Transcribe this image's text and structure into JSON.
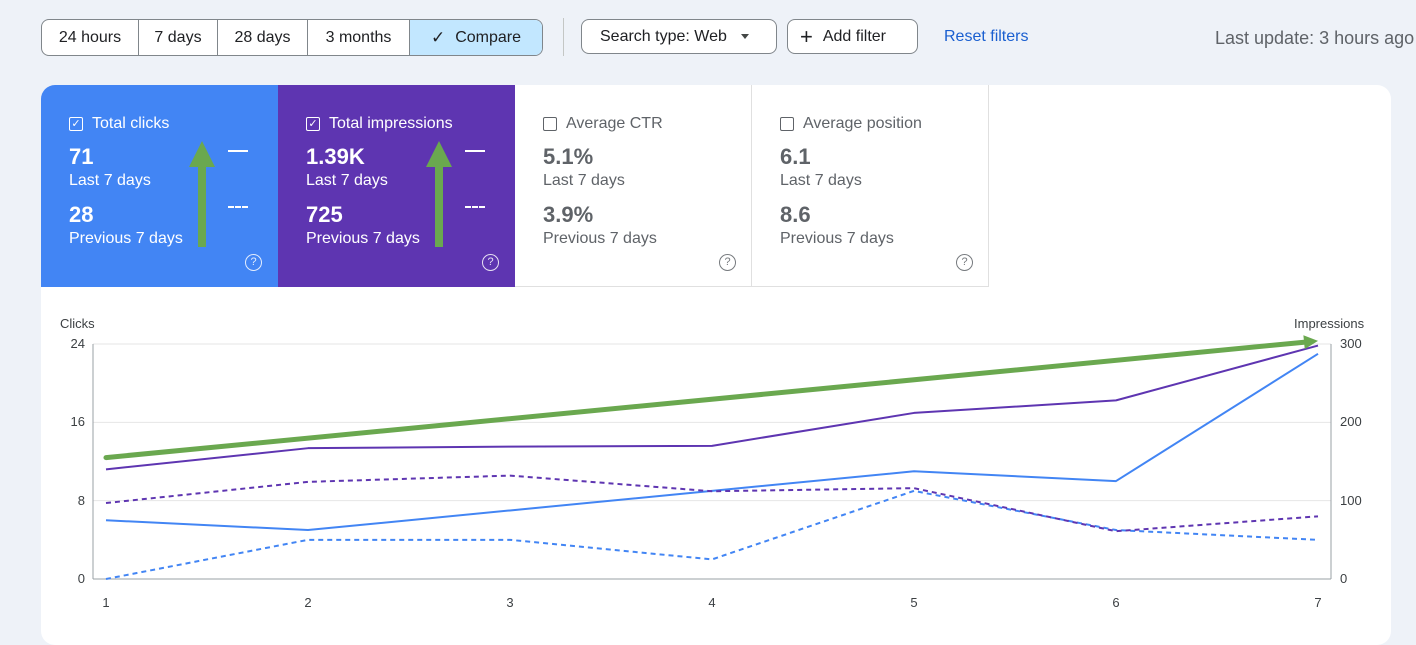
{
  "toolbar": {
    "ranges": [
      "24 hours",
      "7 days",
      "28 days",
      "3 months"
    ],
    "compare_label": "Compare",
    "search_type_label": "Search type: Web",
    "add_filter_label": "Add filter",
    "reset_label": "Reset filters",
    "last_update": "Last update: 3 hours ago"
  },
  "metrics": {
    "clicks": {
      "label": "Total clicks",
      "value": "71",
      "value_label": "Last 7 days",
      "prev_value": "28",
      "prev_label": "Previous 7 days",
      "checked": true
    },
    "impressions": {
      "label": "Total impressions",
      "value": "1.39K",
      "value_label": "Last 7 days",
      "prev_value": "725",
      "prev_label": "Previous 7 days",
      "checked": true
    },
    "ctr": {
      "label": "Average CTR",
      "value": "5.1%",
      "value_label": "Last 7 days",
      "prev_value": "3.9%",
      "prev_label": "Previous 7 days",
      "checked": false
    },
    "position": {
      "label": "Average position",
      "value": "6.1",
      "value_label": "Last 7 days",
      "prev_value": "8.6",
      "prev_label": "Previous 7 days",
      "checked": false
    }
  },
  "colors": {
    "clicks": "#4285f4",
    "impressions": "#5e35b1",
    "annotation": "#6aa84f"
  },
  "chart_data": {
    "type": "line",
    "x": [
      1,
      2,
      3,
      4,
      5,
      6,
      7
    ],
    "left_axis": {
      "label": "Clicks",
      "ticks": [
        0,
        8,
        16,
        24
      ],
      "range": [
        0,
        24
      ]
    },
    "right_axis": {
      "label": "Impressions",
      "ticks": [
        0,
        100,
        200,
        300
      ],
      "range": [
        0,
        300
      ]
    },
    "grid": true,
    "series": [
      {
        "metric": "clicks",
        "period": "current",
        "style": "solid",
        "axis": "left",
        "values": [
          6,
          5,
          7,
          9,
          11,
          10,
          23
        ]
      },
      {
        "metric": "clicks",
        "period": "previous",
        "style": "dashed",
        "axis": "left",
        "values": [
          0,
          4,
          4,
          2,
          9,
          5,
          4
        ]
      },
      {
        "metric": "impressions",
        "period": "current",
        "style": "solid",
        "axis": "right",
        "values": [
          140,
          167,
          169,
          170,
          212,
          228,
          298
        ]
      },
      {
        "metric": "impressions",
        "period": "previous",
        "style": "dashed",
        "axis": "right",
        "values": [
          97,
          124,
          132,
          112,
          116,
          61,
          80
        ]
      }
    ],
    "annotation": {
      "type": "trend-arrow",
      "from": [
        1,
        155
      ],
      "to": [
        7,
        304
      ],
      "axis": "right"
    }
  }
}
